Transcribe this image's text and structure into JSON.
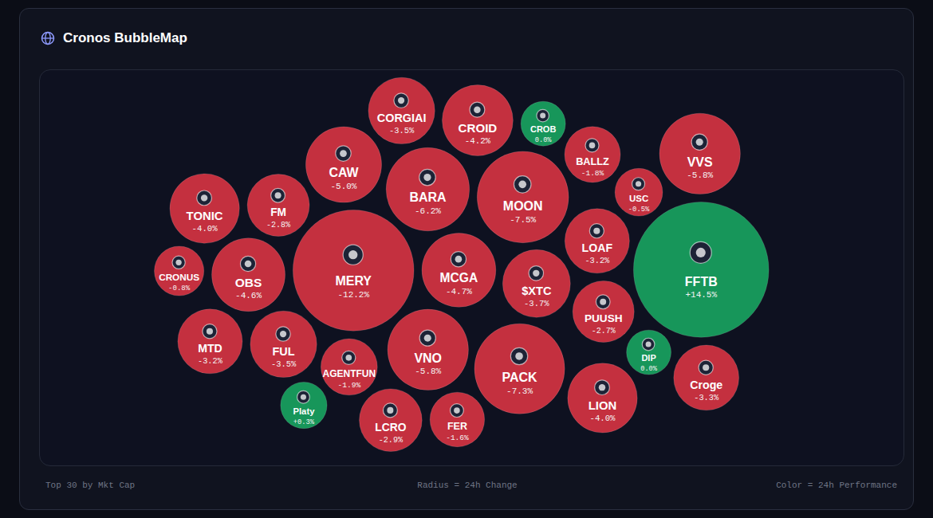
{
  "chart_data": {
    "type": "bubble",
    "title": "Cronos BubbleMap",
    "categories": [
      "Croge",
      "LION",
      "VVS",
      "BALLZ",
      "MCGA",
      "$XTC",
      "CRONUS",
      "Platy",
      "LCRO",
      "CROB",
      "USC",
      "PUUSH",
      "MTD",
      "FUL",
      "FER",
      "FFTB",
      "FM",
      "VNO",
      "TONIC",
      "LOAF",
      "PACK",
      "CORGIAI",
      "OBS",
      "BARA",
      "CROID",
      "MERY",
      "MOON",
      "CAW",
      "DIP",
      "AGENTFUN"
    ],
    "values": [
      -3.3,
      -4.0,
      -5.8,
      -1.8,
      -4.7,
      -3.7,
      -0.8,
      0.3,
      -2.9,
      0.0,
      -0.5,
      -2.7,
      -3.2,
      -3.5,
      -1.6,
      14.5,
      -2.8,
      -5.8,
      -4.0,
      -3.2,
      -7.3,
      -3.5,
      -4.6,
      -6.2,
      -4.2,
      -12.2,
      -7.5,
      -5.0,
      0.0,
      -1.9
    ],
    "value_labels": [
      "-3.3%",
      "-4.0%",
      "-5.8%",
      "-1.8%",
      "-4.7%",
      "-3.7%",
      "-0.8%",
      "+0.3%",
      "-2.9%",
      "0.0%",
      "-0.5%",
      "-2.7%",
      "-3.2%",
      "-3.5%",
      "-1.6%",
      "+14.5%",
      "-2.8%",
      "-5.8%",
      "-4.0%",
      "-3.2%",
      "-7.3%",
      "-3.5%",
      "-4.6%",
      "-6.2%",
      "-4.2%",
      "-12.2%",
      "-7.5%",
      "-5.0%",
      "0.0%",
      "-1.9%"
    ],
    "colors": [
      "#c4303f",
      "#c4303f",
      "#c4303f",
      "#c4303f",
      "#c4303f",
      "#c4303f",
      "#c4303f",
      "#17965a",
      "#c4303f",
      "#17965a",
      "#c4303f",
      "#c4303f",
      "#c4303f",
      "#c4303f",
      "#c4303f",
      "#17965a",
      "#c4303f",
      "#c4303f",
      "#c4303f",
      "#c4303f",
      "#c4303f",
      "#c4303f",
      "#c4303f",
      "#c4303f",
      "#c4303f",
      "#c4303f",
      "#c4303f",
      "#c4303f",
      "#17965a",
      "#c4303f"
    ],
    "data_labels": true,
    "tick_labels": false,
    "annotations": [
      "Top 30 by Mkt Cap",
      "Radius = 24h Change",
      "Color = 24h Performance"
    ]
  }
}
